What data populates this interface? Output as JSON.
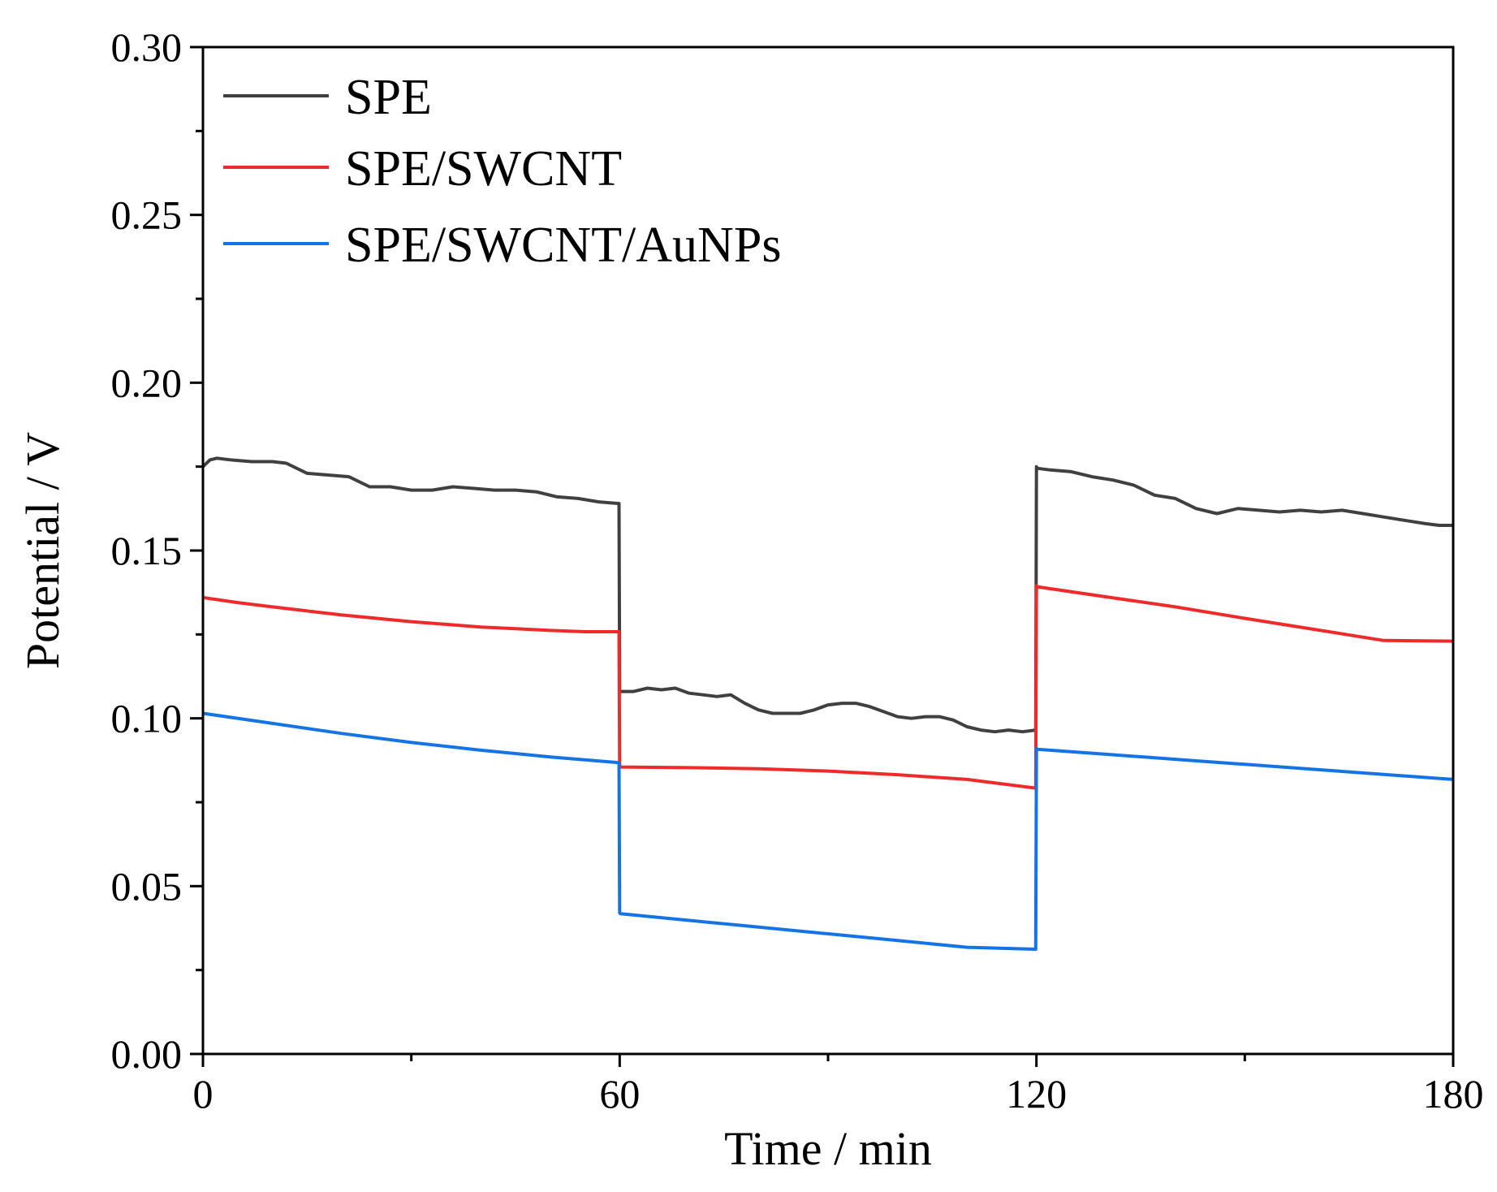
{
  "chart_data": {
    "type": "line",
    "title": "",
    "xlabel": "Time / min",
    "ylabel": "Potential / V",
    "xlim": [
      0,
      180
    ],
    "ylim": [
      0.0,
      0.3
    ],
    "xticks": [
      0,
      60,
      120,
      180
    ],
    "xtick_labels": [
      "0",
      "60",
      "120",
      "180"
    ],
    "yticks": [
      0.0,
      0.05,
      0.1,
      0.15,
      0.2,
      0.25,
      0.3
    ],
    "ytick_labels": [
      "0.00",
      "0.05",
      "0.10",
      "0.15",
      "0.20",
      "0.25",
      "0.30"
    ],
    "grid": false,
    "legend_position": "top-left",
    "series": [
      {
        "name": "SPE",
        "color": "#404040",
        "x": [
          0,
          1,
          2,
          4,
          7,
          10,
          12,
          15,
          18,
          21,
          24,
          27,
          30,
          33,
          36,
          39,
          42,
          45,
          48,
          51,
          54,
          57,
          59.9,
          60,
          60.1,
          62,
          64,
          66,
          68,
          70,
          72,
          74,
          76,
          78,
          80,
          82,
          84,
          86,
          88,
          90,
          92,
          94,
          96,
          98,
          100,
          102,
          104,
          106,
          108,
          110,
          112,
          114,
          116,
          118,
          119.9,
          120,
          120.1,
          122,
          125,
          128,
          131,
          134,
          137,
          140,
          143,
          146,
          149,
          152,
          155,
          158,
          161,
          164,
          167,
          170,
          173,
          176,
          178,
          180
        ],
        "values": [
          0.175,
          0.177,
          0.1775,
          0.177,
          0.1765,
          0.1765,
          0.176,
          0.173,
          0.1725,
          0.172,
          0.169,
          0.169,
          0.168,
          0.168,
          0.169,
          0.1685,
          0.168,
          0.168,
          0.1675,
          0.166,
          0.1655,
          0.1645,
          0.164,
          0.108,
          0.108,
          0.108,
          0.109,
          0.1085,
          0.109,
          0.1075,
          0.107,
          0.1065,
          0.107,
          0.1045,
          0.1025,
          0.1015,
          0.1015,
          0.1015,
          0.1025,
          0.104,
          0.1045,
          0.1045,
          0.1035,
          0.102,
          0.1005,
          0.1,
          0.1005,
          0.1005,
          0.0995,
          0.0975,
          0.0965,
          0.096,
          0.0965,
          0.096,
          0.0965,
          0.175,
          0.1745,
          0.174,
          0.1735,
          0.172,
          0.171,
          0.1695,
          0.1665,
          0.1655,
          0.1625,
          0.161,
          0.1625,
          0.162,
          0.1615,
          0.162,
          0.1615,
          0.162,
          0.161,
          0.16,
          0.159,
          0.158,
          0.1575,
          0.1575
        ]
      },
      {
        "name": "SPE/SWCNT",
        "color": "#ee2a2a",
        "x": [
          0,
          5,
          10,
          15,
          20,
          25,
          30,
          35,
          40,
          45,
          50,
          55,
          59.9,
          60,
          60.1,
          70,
          80,
          90,
          100,
          110,
          119.9,
          120,
          120.1,
          130,
          140,
          150,
          160,
          170,
          180
        ],
        "values": [
          0.136,
          0.1345,
          0.1332,
          0.132,
          0.1308,
          0.1298,
          0.1288,
          0.128,
          0.1272,
          0.1267,
          0.1262,
          0.1258,
          0.1258,
          0.086,
          0.0855,
          0.0853,
          0.085,
          0.0843,
          0.0832,
          0.0818,
          0.0792,
          0.1395,
          0.1392,
          0.1362,
          0.1332,
          0.1298,
          0.1265,
          0.1232,
          0.123
        ]
      },
      {
        "name": "SPE/SWCNT/AuNPs",
        "color": "#1474e6",
        "x": [
          0,
          10,
          20,
          30,
          40,
          50,
          59.9,
          60,
          60.1,
          70,
          80,
          90,
          100,
          110,
          119.9,
          120,
          120.1,
          130,
          140,
          150,
          160,
          170,
          180
        ],
        "values": [
          0.1015,
          0.0985,
          0.0955,
          0.0928,
          0.0905,
          0.0885,
          0.0868,
          0.042,
          0.0418,
          0.0398,
          0.0378,
          0.0358,
          0.0338,
          0.0318,
          0.0312,
          0.091,
          0.0908,
          0.0893,
          0.0878,
          0.0863,
          0.0848,
          0.0833,
          0.0818
        ]
      }
    ]
  }
}
